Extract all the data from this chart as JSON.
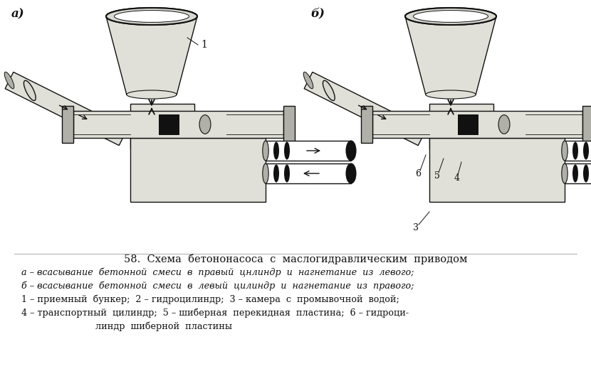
{
  "bg_color": "#ffffff",
  "title": "58.  Схема  бетононасоса  с  маслогидравлическим  приводом",
  "caption_line1": "а – всасывание  бетонной  смеси  в  правый  цнлиндр  и  нагнетание  из  левого;",
  "caption_line2": "б – всасывание  бетонной  смеси  в  левый  цилиндр  и  нагнетание  из  правого;",
  "caption_line3": "1 – приемный  бункер;  2 – гидроцилиндр;  3 – камера  с  промывочной  водой;",
  "caption_line4": "4 – транспортный  цилиндр;  5 – шиберная  перекидная  пластина;  6 – гидроци-",
  "caption_line5": "                          линдр  шиберной  пластины",
  "label_a": "а)",
  "label_b": "б)",
  "lc": "#111111",
  "lw": 1.0
}
